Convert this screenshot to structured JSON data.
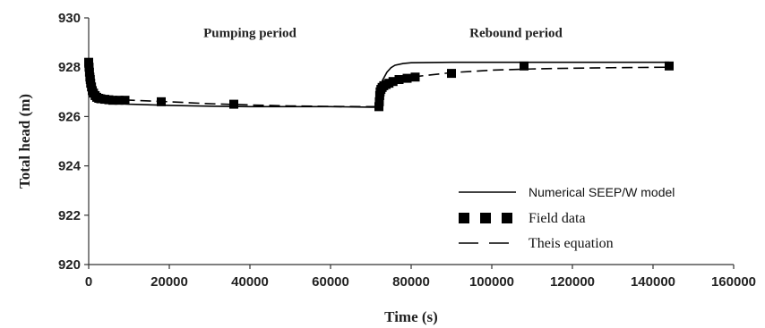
{
  "chart_data": {
    "type": "line",
    "xlabel": "Time (s)",
    "ylabel": "Total head (m)",
    "xlim": [
      0,
      160000
    ],
    "ylim": [
      920,
      930
    ],
    "x_ticks": [
      "0",
      "20000",
      "40000",
      "60000",
      "80000",
      "100000",
      "120000",
      "140000",
      "160000"
    ],
    "y_ticks": [
      "920",
      "922",
      "924",
      "926",
      "928",
      "930"
    ],
    "grid": false,
    "legend_placement": "bottom-right",
    "annotations": [
      {
        "text": "Pumping period",
        "x": 40000,
        "y": 929.4
      },
      {
        "text": "Rebound period",
        "x": 106000,
        "y": 929.4
      }
    ],
    "series": [
      {
        "name": "Numerical SEEP/W model",
        "style": "solid",
        "x": [
          0,
          300,
          800,
          1500,
          3000,
          6000,
          10000,
          20000,
          30000,
          40000,
          50000,
          60000,
          70000,
          72000,
          72200,
          72500,
          73000,
          74000,
          75000,
          76000,
          78000,
          80000,
          90000,
          100000,
          110000,
          120000,
          130000,
          144000
        ],
        "y": [
          928.2,
          927.4,
          927.0,
          926.8,
          926.65,
          926.55,
          926.5,
          926.45,
          926.42,
          926.4,
          926.4,
          926.4,
          926.38,
          926.38,
          927.0,
          927.3,
          927.5,
          927.8,
          927.98,
          928.08,
          928.15,
          928.18,
          928.2,
          928.2,
          928.2,
          928.2,
          928.2,
          928.2
        ]
      },
      {
        "name": "Field data",
        "style": "markers",
        "x": [
          0,
          100,
          200,
          300,
          400,
          500,
          700,
          900,
          1200,
          1600,
          2000,
          2500,
          3000,
          4000,
          5000,
          6000,
          7500,
          9000,
          18000,
          36000,
          72000,
          72100,
          72200,
          72300,
          72500,
          72800,
          73200,
          73800,
          74500,
          75500,
          77000,
          79000,
          81000,
          90000,
          108000,
          144000
        ],
        "y": [
          928.2,
          928.0,
          927.8,
          927.6,
          927.5,
          927.35,
          927.2,
          927.05,
          926.95,
          926.85,
          926.78,
          926.74,
          926.72,
          926.7,
          926.68,
          926.66,
          926.66,
          926.66,
          926.6,
          926.5,
          926.4,
          926.6,
          926.85,
          927.0,
          927.1,
          927.18,
          927.25,
          927.3,
          927.35,
          927.42,
          927.5,
          927.55,
          927.6,
          927.75,
          928.05,
          928.05
        ]
      },
      {
        "name": "Theis equation",
        "style": "dashed",
        "x": [
          0,
          500,
          1000,
          2000,
          4000,
          8000,
          12000,
          20000,
          30000,
          40000,
          50000,
          60000,
          70000,
          72000,
          72500,
          73000,
          74000,
          76000,
          80000,
          90000,
          100000,
          110000,
          120000,
          130000,
          144000
        ],
        "y": [
          928.2,
          927.2,
          926.95,
          926.8,
          926.72,
          926.68,
          926.65,
          926.6,
          926.52,
          926.47,
          926.43,
          926.41,
          926.4,
          926.4,
          927.0,
          927.15,
          927.3,
          927.45,
          927.6,
          927.78,
          927.88,
          927.93,
          927.96,
          927.98,
          928.0
        ]
      }
    ]
  }
}
